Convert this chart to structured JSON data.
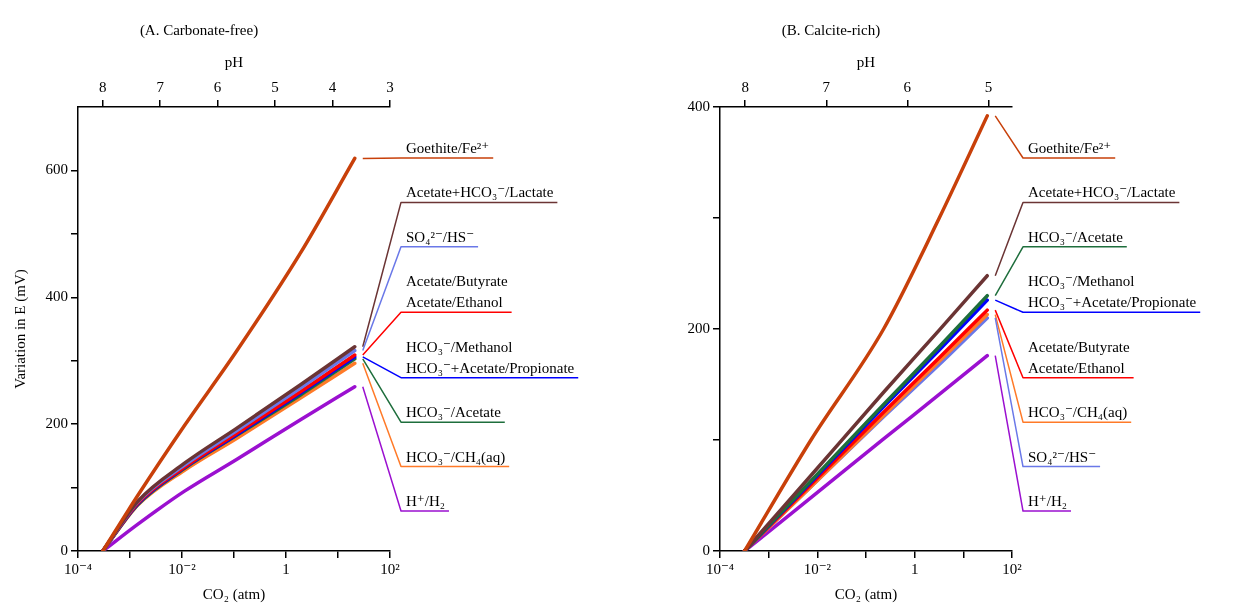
{
  "chart_data": [
    {
      "type": "line",
      "title": "(A. Carbonate-free)",
      "xlabel": "CO₂ (atm)",
      "ylabel": "Variation in E (mV)",
      "x2label": "pH",
      "log": "x",
      "grid": false,
      "legend": "right",
      "marker": "none",
      "xlim": [
        0.0001,
        100
      ],
      "xticks": [
        {
          "value": 0.0001,
          "label": "10⁻⁴"
        },
        {
          "value": 0.001,
          "label": null
        },
        {
          "value": 0.01,
          "label": "10⁻²"
        },
        {
          "value": 0.1,
          "label": null
        },
        1,
        {
          "value": 10,
          "label": null
        },
        {
          "value": 100,
          "label": "10²"
        }
      ],
      "x2lim": [
        8.43,
        3
      ],
      "x2ticks": [
        8,
        7,
        6,
        5,
        4,
        3
      ],
      "ylim": [
        0,
        700
      ],
      "yticks": [
        0,
        {
          "value": 100,
          "label": null
        },
        200,
        {
          "value": 300,
          "label": null
        },
        400,
        {
          "value": 500,
          "label": null
        },
        600
      ],
      "x": [
        0.0003,
        0.0014,
        0.011,
        0.11,
        1.9,
        21
      ],
      "series": [
        {
          "name": "Goethite/Fe²⁺",
          "color": "#c8400a",
          "values": [
            0,
            87,
            197,
            314,
            470,
            619
          ]
        },
        {
          "name": "Acetate+HCO₃⁻/Lactate",
          "color": "#6b3434",
          "values": [
            0,
            78,
            138,
            193,
            262,
            322
          ]
        },
        {
          "name": "SO₄²⁻/HS⁻",
          "color": "#6a78e8",
          "values": [
            0,
            77,
            135,
            189,
            257,
            316
          ]
        },
        {
          "name": "Acetate/Butyrate\nAcetate/Ethanol",
          "color": "#ff0000",
          "values": [
            0,
            75,
            132,
            185,
            251,
            309
          ]
        },
        {
          "name": "HCO₃⁻/Methanol\nHCO₃⁻+Acetate/Propionate",
          "color": "#0000ff",
          "values": [
            0,
            74,
            131,
            183,
            249,
            306
          ]
        },
        {
          "name": "HCO₃⁻/Acetate",
          "color": "#1e6e3c",
          "values": [
            0,
            73,
            130,
            182,
            246,
            303
          ]
        },
        {
          "name": "HCO₃⁻/CH₄(aq)",
          "color": "#ff7a28",
          "values": [
            0,
            72,
            127,
            177,
            241,
            296
          ]
        },
        {
          "name": "H⁺/H₂",
          "color": "#9b10d0",
          "values": [
            0,
            42,
            94,
            144,
            207,
            259
          ]
        }
      ]
    },
    {
      "type": "line",
      "title": "(B. Calcite-rich)",
      "xlabel": "CO₂ (atm)",
      "x2label": "pH",
      "log": "x",
      "grid": false,
      "legend": "right",
      "marker": "none",
      "xlim": [
        0.0001,
        100
      ],
      "xticks": [
        {
          "value": 0.0001,
          "label": "10⁻⁴"
        },
        {
          "value": 0.001,
          "label": null
        },
        {
          "value": 0.01,
          "label": "10⁻²"
        },
        {
          "value": 0.1,
          "label": null
        },
        1,
        {
          "value": 10,
          "label": null
        },
        {
          "value": 100,
          "label": "10²"
        }
      ],
      "x2lim": [
        8.31,
        4.71
      ],
      "x2ticks": [
        8,
        7,
        6,
        5
      ],
      "ylim": [
        0,
        400
      ],
      "yticks": [
        0,
        {
          "value": 100,
          "label": null
        },
        200,
        {
          "value": 300,
          "label": null
        },
        400
      ],
      "x": [
        0.00032,
        0.0074,
        0.23,
        3.2,
        31
      ],
      "series": [
        {
          "name": "Goethite/Fe²⁺",
          "color": "#c8400a",
          "values": [
            0,
            100,
            200,
            300,
            392
          ]
        },
        {
          "name": "Acetate+HCO₃⁻/Lactate",
          "color": "#6b3434",
          "values": [
            0,
            68,
            143,
            199,
            248
          ]
        },
        {
          "name": "HCO₃⁻/Acetate",
          "color": "#1e6e3c",
          "values": [
            0,
            63,
            132,
            184,
            230
          ]
        },
        {
          "name": "HCO₃⁻/Methanol\nHCO₃⁻+Acetate/Propionate",
          "color": "#0000ff",
          "values": [
            0,
            62,
            130,
            181,
            226
          ]
        },
        {
          "name": "Acetate/Butyrate\nAcetate/Ethanol",
          "color": "#ff0000",
          "values": [
            0,
            60,
            125,
            174,
            217
          ]
        },
        {
          "name": "HCO₃⁻/CH₄(aq)",
          "color": "#ff7a28",
          "values": [
            0,
            58,
            122,
            171,
            213
          ]
        },
        {
          "name": "SO₄²⁻/HS⁻",
          "color": "#6a78e8",
          "values": [
            0,
            58,
            121,
            168,
            210
          ]
        },
        {
          "name": "H⁺/H₂",
          "color": "#9b10d0",
          "values": [
            0,
            48,
            101,
            141,
            176
          ]
        }
      ]
    }
  ]
}
